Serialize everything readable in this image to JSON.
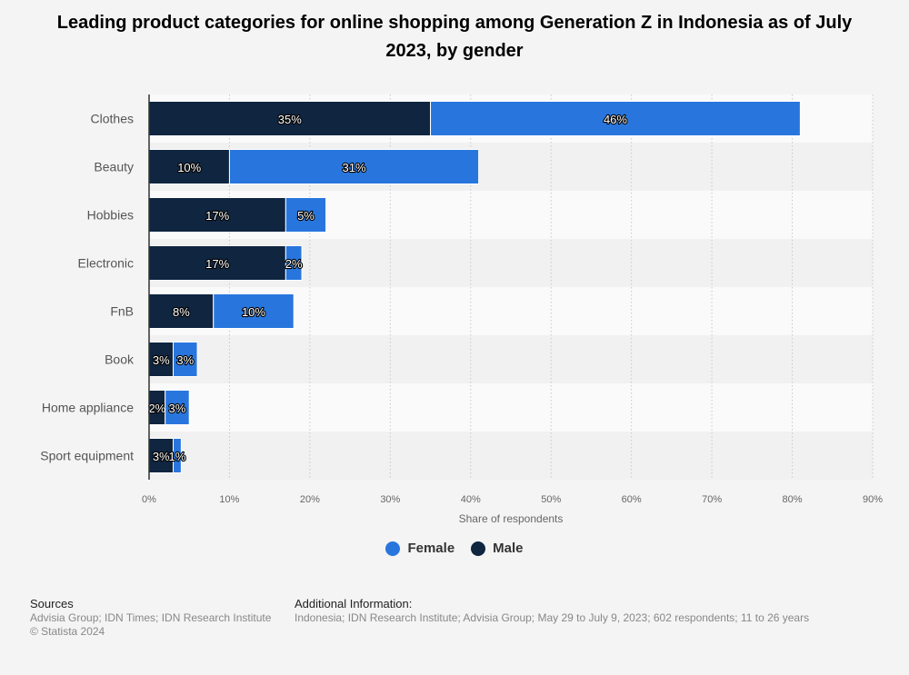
{
  "chart_data": {
    "type": "bar",
    "orientation": "horizontal",
    "stacked": true,
    "title": "Leading product categories for online shopping among Generation Z in Indonesia as of July 2023, by gender",
    "categories": [
      "Clothes",
      "Beauty",
      "Hobbies",
      "Electronic",
      "FnB",
      "Book",
      "Home appliance",
      "Sport equipment"
    ],
    "series": [
      {
        "name": "Male",
        "color": "#0f2540",
        "values": [
          35,
          10,
          17,
          17,
          8,
          3,
          2,
          3
        ]
      },
      {
        "name": "Female",
        "color": "#2876dd",
        "values": [
          46,
          31,
          5,
          2,
          10,
          3,
          3,
          1
        ]
      }
    ],
    "xlabel": "Share of respondents",
    "xlim": [
      0,
      90
    ],
    "xticks": [
      "0%",
      "10%",
      "20%",
      "30%",
      "40%",
      "50%",
      "60%",
      "70%",
      "80%",
      "90%"
    ],
    "grid": true,
    "legend_position": "bottom"
  },
  "legend": [
    {
      "label": "Female",
      "color": "#2876dd"
    },
    {
      "label": "Male",
      "color": "#0f2540"
    }
  ],
  "footer": {
    "sources_heading": "Sources",
    "sources_text": "Advisia Group; IDN Times; IDN Research Institute",
    "copyright": "© Statista 2024",
    "info_heading": "Additional Information:",
    "info_text": "Indonesia; IDN Research Institute; Advisia Group; May 29 to July 9, 2023; 602 respondents; 11 to 26 years"
  }
}
